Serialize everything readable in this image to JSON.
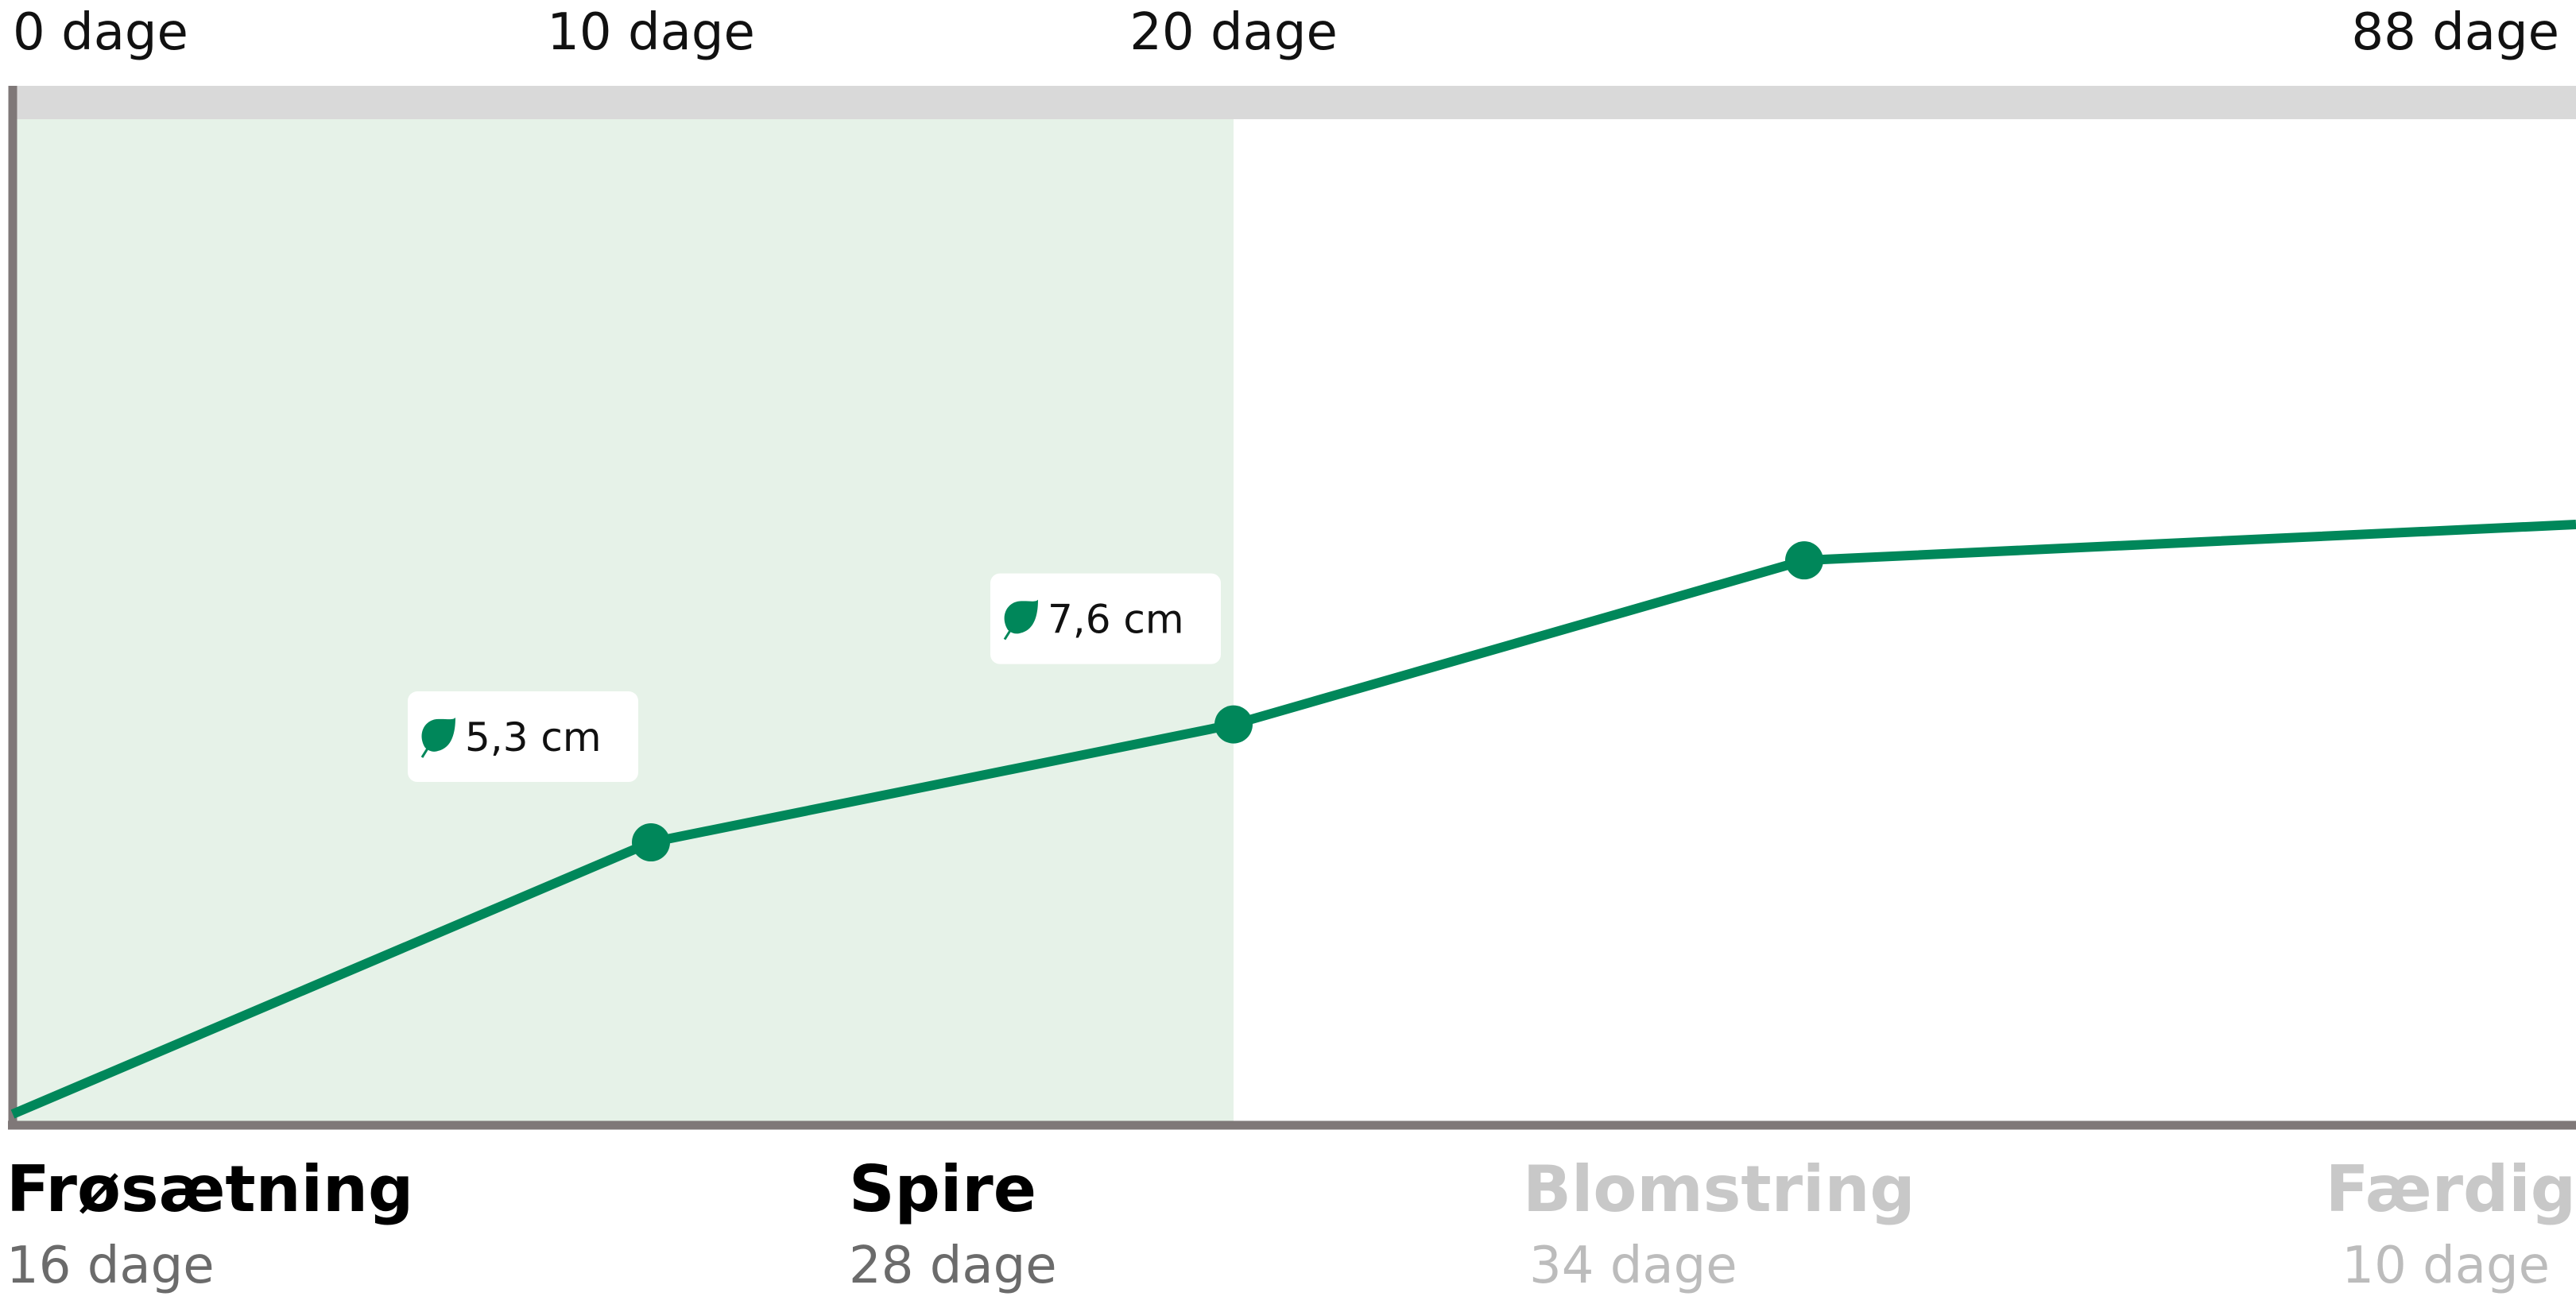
{
  "chart_data": {
    "type": "line",
    "x_tick_labels": [
      {
        "day": 0,
        "label": "0 dage"
      },
      {
        "day": 10,
        "label": "10 dage"
      },
      {
        "day": 20,
        "label": "20 dage"
      },
      {
        "day": 88,
        "label": "88 dage"
      }
    ],
    "x_scale": "piecewise",
    "elapsed_day": 20,
    "series": [
      {
        "color": "#00875a",
        "points": [
          {
            "day": 0,
            "value": 0
          },
          {
            "day": 10,
            "value": 5.3,
            "label": "5,3 cm"
          },
          {
            "day": 20,
            "value": 7.6,
            "label": "7,6 cm"
          },
          {
            "day": 29,
            "value": 10.8
          },
          {
            "day": 88,
            "value": 11.5
          }
        ]
      }
    ],
    "phases": [
      {
        "name": "Frøsætning",
        "days": "16 dage",
        "status": "done"
      },
      {
        "name": "Spire",
        "days": "28 dage",
        "status": "current"
      },
      {
        "name": "Blomstring",
        "days": "34 dage",
        "status": "upcoming"
      },
      {
        "name": "Færdig",
        "days": "10 dage",
        "status": "upcoming"
      }
    ],
    "callout_icon": "leaf-icon",
    "colors": {
      "line": "#00875a",
      "elapsed_band": "#e6f2e8",
      "top_bar": "#d9d9d9",
      "axis": "#7f7878",
      "phase_done": "#000000",
      "phase_upcoming": "#c8c8c8",
      "days_done": "#6b6b6b",
      "days_upcoming": "#bcbcbc"
    }
  }
}
